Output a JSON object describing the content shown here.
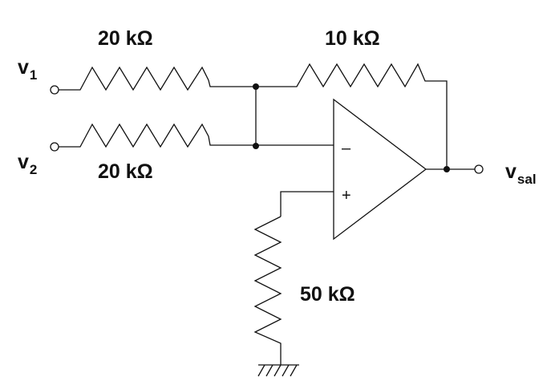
{
  "circuit": {
    "inputs": [
      {
        "symbol": "v",
        "subscript": "1"
      },
      {
        "symbol": "v",
        "subscript": "2"
      }
    ],
    "output": {
      "symbol": "v",
      "subscript": "sal"
    },
    "resistors": {
      "r1": "20 kΩ",
      "r2": "20 kΩ",
      "feedback": "10 kΩ",
      "ground": "50 kΩ"
    },
    "opamp": {
      "inverting_sign": "–",
      "noninverting_sign": "+"
    }
  }
}
